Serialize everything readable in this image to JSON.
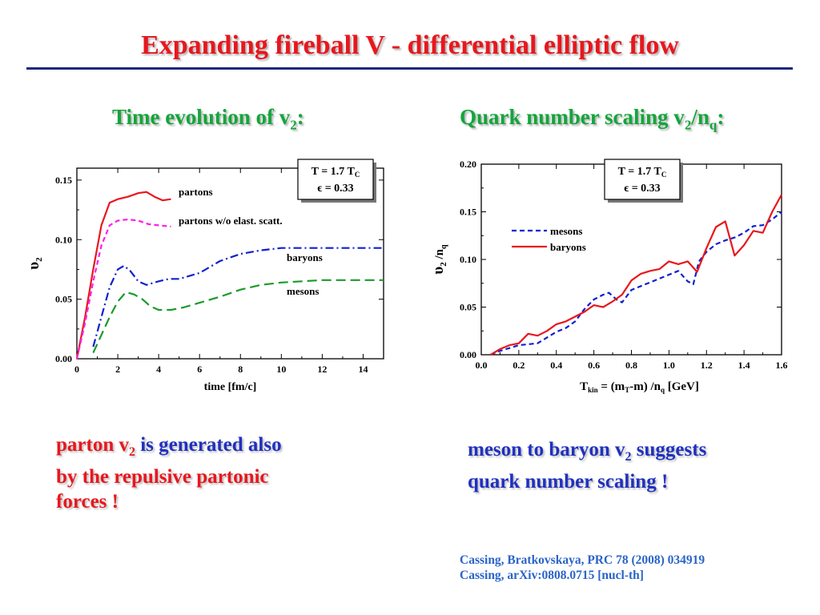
{
  "slide": {
    "title": "Expanding fireball V - differential elliptic flow",
    "left_heading": {
      "pre": "Time evolution of v",
      "sub": "2",
      "post": ":"
    },
    "right_heading": {
      "pre": "Quark number scaling v",
      "sub1": "2",
      "mid": "/n",
      "sub2": "q",
      "post": ":"
    },
    "left_note": {
      "p1": "parton v",
      "p1sub": "2",
      "p2": " is generated also",
      "line2": "by the repulsive partonic",
      "line3": "forces !"
    },
    "right_note": {
      "p1": "meson to baryon v",
      "p1sub": "2",
      "p2": " suggests",
      "line2": "quark number scaling !"
    },
    "refs": [
      "Cassing, Bratkovskaya, PRC 78 (2008) 034919",
      "Cassing,  arXiv:0808.0715 [nucl-th]"
    ]
  },
  "chart_data": [
    {
      "type": "line",
      "xlabel": "time [fm/c]",
      "ylabel": {
        "main": "υ",
        "sub": "2"
      },
      "xlim": [
        0,
        15
      ],
      "ylim": [
        0,
        0.16
      ],
      "xticks": [
        "0",
        "2",
        "4",
        "6",
        "8",
        "10",
        "12",
        "14"
      ],
      "yticks": [
        "0.00",
        "0.05",
        "0.10",
        "0.15"
      ],
      "inset": {
        "line1": "T = 1.7 T",
        "line1sub": "C",
        "line2": "ϵ = 0.33"
      },
      "series": [
        {
          "name": "partons",
          "color": "#e8171d",
          "dash": "solid",
          "x": [
            0,
            0.4,
            0.8,
            1.2,
            1.6,
            2.0,
            2.5,
            3.0,
            3.4,
            3.8,
            4.2,
            4.6
          ],
          "y": [
            0,
            0.035,
            0.075,
            0.112,
            0.131,
            0.134,
            0.136,
            0.139,
            0.14,
            0.136,
            0.133,
            0.134
          ]
        },
        {
          "name": "partons w/o elast. scatt.",
          "color": "#ff1ee8",
          "dash": "dash",
          "x": [
            0,
            0.4,
            0.8,
            1.2,
            1.6,
            2.0,
            2.5,
            3.0,
            3.5,
            4.0,
            4.6
          ],
          "y": [
            0,
            0.03,
            0.065,
            0.095,
            0.112,
            0.116,
            0.117,
            0.116,
            0.113,
            0.112,
            0.111
          ]
        },
        {
          "name": "baryons",
          "color": "#1020d0",
          "dash": "dashdot",
          "x": [
            0.8,
            1.2,
            1.6,
            2.0,
            2.3,
            2.6,
            3.0,
            3.4,
            4.0,
            4.5,
            5.0,
            6.0,
            7.0,
            8.0,
            9.0,
            10.0,
            11.0,
            12.0,
            13.0,
            14.0,
            15.0
          ],
          "y": [
            0.01,
            0.035,
            0.06,
            0.075,
            0.078,
            0.074,
            0.065,
            0.062,
            0.065,
            0.067,
            0.067,
            0.072,
            0.082,
            0.088,
            0.091,
            0.093,
            0.093,
            0.093,
            0.093,
            0.093,
            0.093
          ]
        },
        {
          "name": "mesons",
          "color": "#1a9a2a",
          "dash": "longdash",
          "x": [
            0.8,
            1.2,
            1.6,
            2.0,
            2.4,
            2.8,
            3.2,
            3.6,
            4.0,
            4.6,
            5.2,
            6.0,
            7.0,
            8.0,
            9.0,
            10.0,
            11.0,
            12.0,
            13.0,
            14.0,
            15.0
          ],
          "y": [
            0.005,
            0.02,
            0.035,
            0.048,
            0.056,
            0.054,
            0.05,
            0.044,
            0.041,
            0.041,
            0.043,
            0.047,
            0.052,
            0.058,
            0.062,
            0.064,
            0.065,
            0.066,
            0.066,
            0.066,
            0.066
          ]
        }
      ]
    },
    {
      "type": "line",
      "xlabel": {
        "p1": "T",
        "p1sub": "kin",
        "p2": " = (m",
        "p2sub": "T",
        "p3": "-m) /n",
        "p3sub": "q",
        "p4": "    [GeV]"
      },
      "ylabel": {
        "main": "υ",
        "sub": "2",
        "mid": " /n",
        "sub2": "q"
      },
      "xlim": [
        0,
        1.6
      ],
      "ylim": [
        0,
        0.2
      ],
      "xticks": [
        "0.0",
        "0.2",
        "0.4",
        "0.6",
        "0.8",
        "1.0",
        "1.2",
        "1.4",
        "1.6"
      ],
      "yticks": [
        "0.00",
        "0.05",
        "0.10",
        "0.15",
        "0.20"
      ],
      "inset": {
        "line1": "T = 1.7 T",
        "line1sub": "C",
        "line2": "ϵ = 0.33"
      },
      "series": [
        {
          "name": "mesons",
          "color": "#1020d0",
          "dash": "dash",
          "x": [
            0.05,
            0.1,
            0.15,
            0.2,
            0.25,
            0.3,
            0.35,
            0.4,
            0.45,
            0.5,
            0.55,
            0.6,
            0.65,
            0.68,
            0.72,
            0.75,
            0.8,
            0.85,
            0.9,
            0.95,
            1.0,
            1.05,
            1.1,
            1.13,
            1.16,
            1.2,
            1.25,
            1.3,
            1.35,
            1.4,
            1.45,
            1.5,
            1.55,
            1.6
          ],
          "y": [
            0.0,
            0.004,
            0.007,
            0.01,
            0.011,
            0.012,
            0.018,
            0.024,
            0.028,
            0.035,
            0.048,
            0.058,
            0.063,
            0.065,
            0.058,
            0.055,
            0.068,
            0.072,
            0.076,
            0.08,
            0.084,
            0.088,
            0.077,
            0.074,
            0.098,
            0.108,
            0.116,
            0.12,
            0.123,
            0.128,
            0.135,
            0.136,
            0.142,
            0.15
          ]
        },
        {
          "name": "baryons",
          "color": "#e8171d",
          "dash": "solid",
          "x": [
            0.05,
            0.1,
            0.15,
            0.2,
            0.25,
            0.3,
            0.35,
            0.4,
            0.45,
            0.5,
            0.55,
            0.6,
            0.65,
            0.7,
            0.75,
            0.8,
            0.85,
            0.9,
            0.95,
            1.0,
            1.05,
            1.1,
            1.15,
            1.2,
            1.25,
            1.3,
            1.35,
            1.4,
            1.45,
            1.5,
            1.55,
            1.6
          ],
          "y": [
            0.0,
            0.006,
            0.01,
            0.012,
            0.022,
            0.02,
            0.025,
            0.032,
            0.035,
            0.04,
            0.045,
            0.052,
            0.05,
            0.056,
            0.063,
            0.078,
            0.085,
            0.088,
            0.09,
            0.098,
            0.095,
            0.098,
            0.087,
            0.112,
            0.134,
            0.14,
            0.104,
            0.115,
            0.13,
            0.128,
            0.15,
            0.168
          ]
        }
      ]
    }
  ]
}
